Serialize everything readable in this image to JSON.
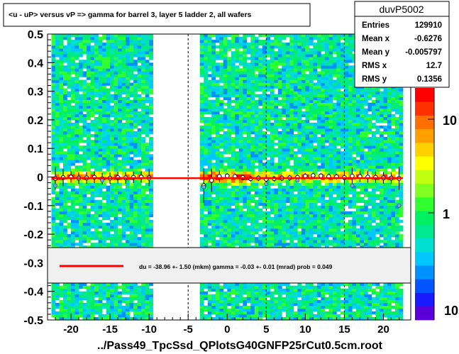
{
  "chart_data": {
    "type": "heatmap",
    "title": "<u - uP>       versus   vP =>  gamma for barrel 3, layer 5 ladder 2, all wafers",
    "xlabel": "../Pass49_TpcSsd_QPlotsG40GNFP25rCut0.5cm.root",
    "ylabel": "",
    "xlim": [
      -23,
      23.5
    ],
    "ylim": [
      -0.5,
      0.5
    ],
    "x_ticks": [
      -20,
      -15,
      -10,
      -5,
      0,
      5,
      10,
      15,
      20
    ],
    "x_tick_labels": [
      "-20",
      "-15",
      "-10",
      "-5",
      "0",
      "5",
      "10",
      "15",
      "20"
    ],
    "y_ticks": [
      -0.5,
      -0.4,
      -0.3,
      -0.2,
      -0.1,
      0,
      0.1,
      0.2,
      0.3,
      0.4,
      0.5
    ],
    "y_tick_labels": [
      "-0.5",
      "-0.4",
      "-0.3",
      "-0.2",
      "-0.1",
      "0",
      "0.1",
      "0.2",
      "0.3",
      "0.4",
      "0.5"
    ],
    "dashed_x_lines": [
      -5,
      5,
      15
    ],
    "occupied_x_bands": [
      [
        -22.5,
        -9.5
      ],
      [
        -3.5,
        22.5
      ]
    ],
    "colorbar": {
      "scale": "log",
      "tick_labels": [
        "1",
        "10"
      ],
      "bottom_label": "10",
      "colors": [
        "#5c00d8",
        "#1a1aff",
        "#0055ff",
        "#0090ff",
        "#00c8ff",
        "#00e0d0",
        "#00e890",
        "#00f060",
        "#30ff30",
        "#80ff20",
        "#c0ff10",
        "#ffff00",
        "#ffd000",
        "#ffa000",
        "#ff7000",
        "#ff3000",
        "#ff0000"
      ]
    },
    "stats": {
      "name": "duvP5002",
      "rows": [
        {
          "label": "Entries",
          "value": "129910"
        },
        {
          "label": "Mean x",
          "value": "-0.6276"
        },
        {
          "label": "Mean y",
          "value": "-0.005797"
        },
        {
          "label": "RMS x",
          "value": "12.7"
        },
        {
          "label": "RMS y",
          "value": "0.1356"
        }
      ]
    },
    "fit_legend": "du =  -38.96 +-  1.50 (mkm) gamma =   -0.03 +-  0.01 (mrad) prob = 0.049",
    "fit_line": {
      "x": [
        -22.5,
        22.5
      ],
      "y": [
        -0.0039,
        -0.0039
      ],
      "color": "#ff0000"
    },
    "profile_points": {
      "x": [
        -22,
        -21,
        -20,
        -19,
        -18,
        -17,
        -16,
        -15,
        -14,
        -13,
        -12,
        -11,
        -10,
        -3,
        -2,
        -1,
        0,
        1,
        2,
        3,
        4,
        5,
        6,
        7,
        8,
        9,
        10,
        11,
        12,
        13,
        14,
        15,
        16,
        17,
        18,
        19,
        20,
        21,
        22
      ],
      "y": [
        -0.005,
        -0.002,
        0.0,
        -0.004,
        -0.003,
        -0.001,
        -0.006,
        -0.004,
        -0.002,
        -0.003,
        -0.001,
        0.0,
        -0.002,
        -0.03,
        -0.012,
        0.002,
        0.004,
        0.002,
        -0.002,
        -0.006,
        -0.004,
        -0.008,
        -0.006,
        -0.004,
        -0.003,
        -0.001,
        0.003,
        0.005,
        0.004,
        0.002,
        0.001,
        -0.002,
        0.003,
        0.002,
        0.0,
        -0.001,
        -0.003,
        -0.004,
        -0.005
      ],
      "err": [
        0.04,
        0.03,
        0.02,
        0.02,
        0.02,
        0.02,
        0.02,
        0.02,
        0.02,
        0.02,
        0.02,
        0.02,
        0.03,
        0.06,
        0.04,
        0.02,
        0.01,
        0.01,
        0.01,
        0.01,
        0.01,
        0.01,
        0.01,
        0.01,
        0.01,
        0.01,
        0.01,
        0.01,
        0.01,
        0.01,
        0.01,
        0.02,
        0.03,
        0.02,
        0.02,
        0.02,
        0.02,
        0.02,
        0.04
      ]
    },
    "blue_points": {
      "x": [
        -22,
        -16,
        -10,
        -3,
        5,
        9,
        16,
        22
      ],
      "y": [
        -0.03,
        -0.012,
        -0.005,
        -0.035,
        -0.024,
        -0.012,
        -0.03,
        -0.1
      ]
    }
  }
}
